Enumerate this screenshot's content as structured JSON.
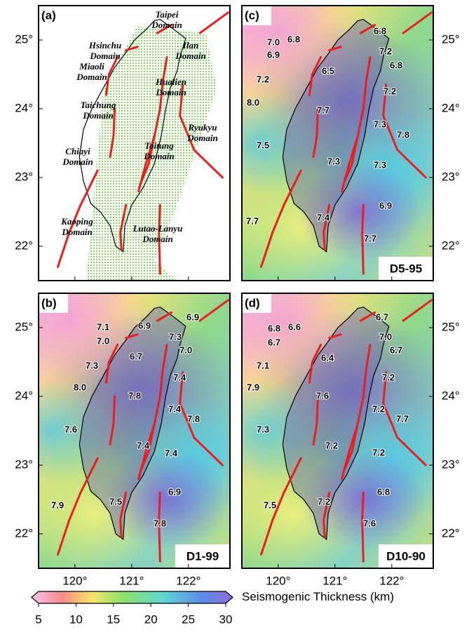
{
  "axes": {
    "lat_labels": [
      "25°",
      "24°",
      "23°",
      "22°"
    ],
    "lon_labels": [
      "120°",
      "121°",
      "122°"
    ]
  },
  "panels": [
    {
      "id": "(a)",
      "domains": [
        [
          "Taipei",
          "Domain"
        ],
        [
          "Hsinchu",
          "Domain"
        ],
        [
          "Ilan",
          "Domain"
        ],
        [
          "Miaoli",
          "Domain"
        ],
        [
          "Hualien",
          "Domain"
        ],
        [
          "Taichung",
          "Domain"
        ],
        [
          "Ryukyu",
          "Domain"
        ],
        [
          "Taitung",
          "Domain"
        ],
        [
          "Chiayi",
          "Domain"
        ],
        [
          "Kaoping",
          "Domain"
        ],
        [
          "Lutao-Lanyu",
          "Domain"
        ]
      ]
    },
    {
      "id": "(c)",
      "tag": "D5-95",
      "labels": [
        "7.0",
        "6.8",
        "6.8",
        "6.9",
        "7.2",
        "6.5",
        "6.8",
        "7.2",
        "7.2",
        "8.0",
        "7.7",
        "7.3",
        "7.8",
        "7.5",
        "7.3",
        "7.3",
        "6.9",
        "7.7",
        "7.4",
        "7.7"
      ]
    },
    {
      "id": "(b)",
      "tag": "D1-99",
      "labels": [
        "7.1",
        "6.9",
        "6.9",
        "7.0",
        "7.3",
        "6.7",
        "7.0",
        "7.3",
        "7.4",
        "8.0",
        "7.8",
        "7.4",
        "7.8",
        "7.6",
        "7.4",
        "7.4",
        "6.9",
        "7.5",
        "7.9",
        "7.8"
      ]
    },
    {
      "id": "(d)",
      "tag": "D10-90",
      "labels": [
        "6.7",
        "6.8",
        "6.6",
        "7.0",
        "6.7",
        "6.4",
        "6.7",
        "7.1",
        "7.2",
        "7.9",
        "7.6",
        "7.2",
        "7.7",
        "7.3",
        "7.2",
        "7.2",
        "6.8",
        "7.2",
        "7.5",
        "7.6"
      ]
    }
  ],
  "colorbar": {
    "title": "Seismogenic Thickness (km)",
    "lim": [
      5,
      30
    ],
    "ticks": [
      5,
      10,
      15,
      20,
      25,
      30
    ]
  }
}
